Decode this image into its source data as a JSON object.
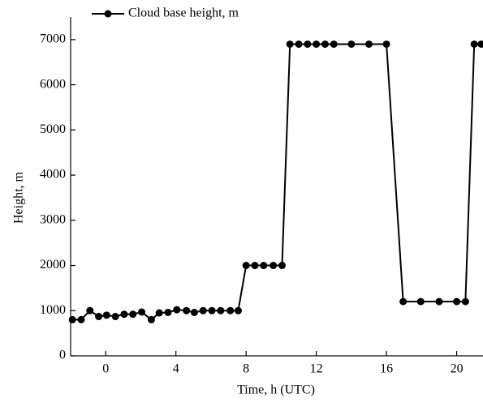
{
  "chart_data": {
    "type": "line",
    "x_label": "Time, h (UTC)",
    "y_label": "Height, m",
    "xlim": [
      -2,
      21.5
    ],
    "ylim": [
      0,
      7500
    ],
    "xticks": [
      0,
      4,
      8,
      12,
      16,
      20
    ],
    "yticks": [
      0,
      1000,
      2000,
      3000,
      4000,
      5000,
      6000,
      7000
    ],
    "legend": "top-left",
    "series": [
      {
        "name": "Cloud base height, m",
        "color": "#000000",
        "x": [
          -1.9,
          -1.4,
          -0.9,
          -0.4,
          0.05,
          0.55,
          1.05,
          1.55,
          2.05,
          2.6,
          3.05,
          3.55,
          4.05,
          4.6,
          5.05,
          5.55,
          6.05,
          6.55,
          7.1,
          7.55,
          8.0,
          8.5,
          9.0,
          9.55,
          10.05,
          10.5,
          11.0,
          11.5,
          12.0,
          12.5,
          13.0,
          14.0,
          15.0,
          16.0,
          16.95,
          17.95,
          19.0,
          20.0,
          20.5,
          21.0,
          21.4
        ],
        "values": [
          800,
          800,
          1000,
          870,
          900,
          870,
          920,
          920,
          970,
          800,
          950,
          960,
          1020,
          1000,
          960,
          1000,
          1000,
          1000,
          1000,
          1000,
          2000,
          2000,
          2000,
          2000,
          2000,
          6900,
          6900,
          6900,
          6900,
          6900,
          6900,
          6900,
          6900,
          6900,
          1200,
          1200,
          1200,
          1200,
          1200,
          6900,
          6900
        ]
      }
    ]
  }
}
